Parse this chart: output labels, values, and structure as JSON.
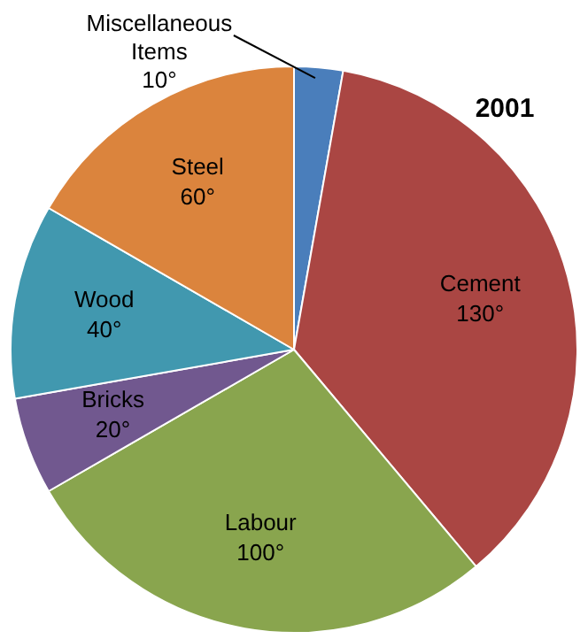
{
  "chart_data": {
    "type": "pie",
    "title": "2001",
    "categories": [
      "Miscellaneous Items",
      "Cement",
      "Labour",
      "Bricks",
      "Wood",
      "Steel"
    ],
    "values": [
      10,
      130,
      100,
      20,
      40,
      60
    ],
    "value_labels": [
      "10°",
      "130°",
      "100°",
      "20°",
      "40°",
      "60°"
    ],
    "colors": [
      "#4a7ebb",
      "#aa4643",
      "#89a54e",
      "#71588f",
      "#4198af",
      "#db843d"
    ],
    "legend": false
  }
}
